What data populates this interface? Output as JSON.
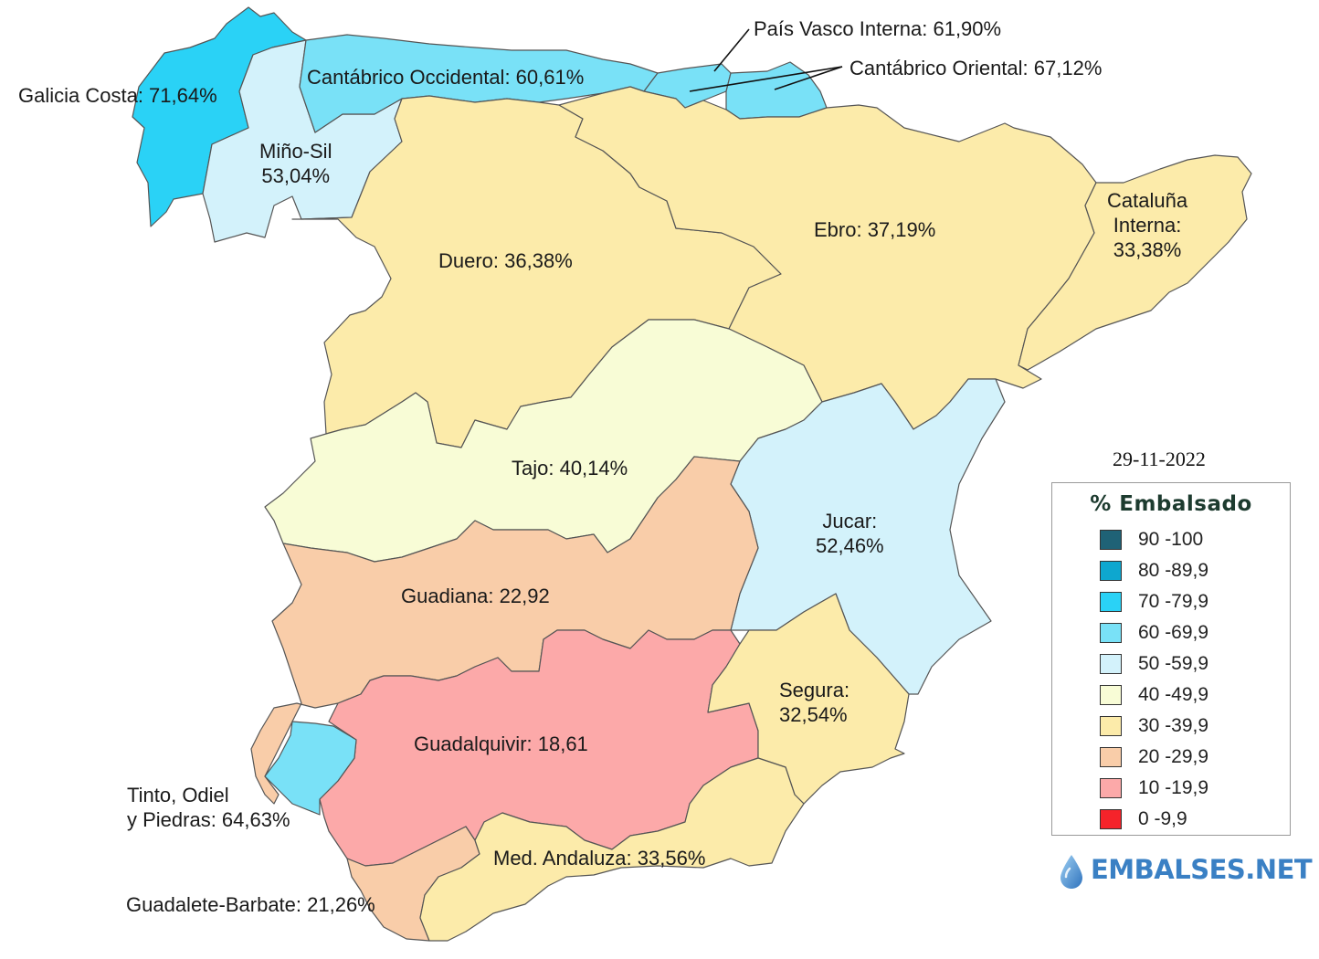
{
  "map": {
    "date": "29-11-2022",
    "basins": [
      {
        "id": "galicia-costa",
        "label_lines": [
          "Galicia Costa: 71,64%"
        ],
        "percent": 71.64,
        "color": "#2ad2f6"
      },
      {
        "id": "mino-sil",
        "label_lines": [
          "Miño-Sil",
          "53,04%"
        ],
        "percent": 53.04,
        "color": "#d3f2fb"
      },
      {
        "id": "cantabrico-occidental",
        "label_lines": [
          "Cantábrico Occidental: 60,61%"
        ],
        "percent": 60.61,
        "color": "#79e1f7"
      },
      {
        "id": "pais-vasco-interna",
        "label_lines": [
          "País Vasco Interna: 61,90%"
        ],
        "percent": 61.9,
        "color": "#79e1f7"
      },
      {
        "id": "cantabrico-oriental",
        "label_lines": [
          "Cantábrico Oriental: 67,12%"
        ],
        "percent": 67.12,
        "color": "#79e1f7"
      },
      {
        "id": "duero",
        "label_lines": [
          "Duero: 36,38%"
        ],
        "percent": 36.38,
        "color": "#fcebaa"
      },
      {
        "id": "ebro",
        "label_lines": [
          "Ebro: 37,19%"
        ],
        "percent": 37.19,
        "color": "#fcebaa"
      },
      {
        "id": "cataluna-interna",
        "label_lines": [
          "Cataluña",
          "Interna:",
          "33,38%"
        ],
        "percent": 33.38,
        "color": "#fcebaa"
      },
      {
        "id": "tajo",
        "label_lines": [
          "Tajo: 40,14%"
        ],
        "percent": 40.14,
        "color": "#f8fcd6"
      },
      {
        "id": "jucar",
        "label_lines": [
          "Jucar:",
          "52,46%"
        ],
        "percent": 52.46,
        "color": "#d3f2fb"
      },
      {
        "id": "guadiana",
        "label_lines": [
          "Guadiana: 22,92"
        ],
        "percent": 22.92,
        "color": "#f9cda9"
      },
      {
        "id": "guadalquivir",
        "label_lines": [
          "Guadalquivir: 18,61"
        ],
        "percent": 18.61,
        "color": "#fca9a9"
      },
      {
        "id": "segura",
        "label_lines": [
          "Segura:",
          "32,54%"
        ],
        "percent": 32.54,
        "color": "#fcebaa"
      },
      {
        "id": "tinto-odiel-piedras",
        "label_lines": [
          "Tinto, Odiel",
          "y Piedras: 64,63%"
        ],
        "percent": 64.63,
        "color": "#79e1f7"
      },
      {
        "id": "guadalete-barbate",
        "label_lines": [
          "Guadalete-Barbate: 21,26%"
        ],
        "percent": 21.26,
        "color": "#f9cda9"
      },
      {
        "id": "med-andaluza",
        "label_lines": [
          "Med. Andaluza: 33,56%"
        ],
        "percent": 33.56,
        "color": "#fcebaa"
      }
    ]
  },
  "legend": {
    "title": "% Embalsado",
    "items": [
      {
        "label": "90 -100",
        "color": "#1f6276"
      },
      {
        "label": "80 -89,9",
        "color": "#0ea7cf"
      },
      {
        "label": "70 -79,9",
        "color": "#2ad2f6"
      },
      {
        "label": "60 -69,9",
        "color": "#79e1f7"
      },
      {
        "label": "50 -59,9",
        "color": "#d3f2fb"
      },
      {
        "label": "40 -49,9",
        "color": "#f8fcd6"
      },
      {
        "label": "30 -39,9",
        "color": "#fcebaa"
      },
      {
        "label": "20 -29,9",
        "color": "#f9cda9"
      },
      {
        "label": "10 -19,9",
        "color": "#fca9a9"
      },
      {
        "label": "0 -9,9",
        "color": "#f5232a"
      }
    ]
  },
  "brand": {
    "name": "EMBALSES.NET",
    "color": "#3a80c4",
    "icon": "water-drop-icon"
  }
}
